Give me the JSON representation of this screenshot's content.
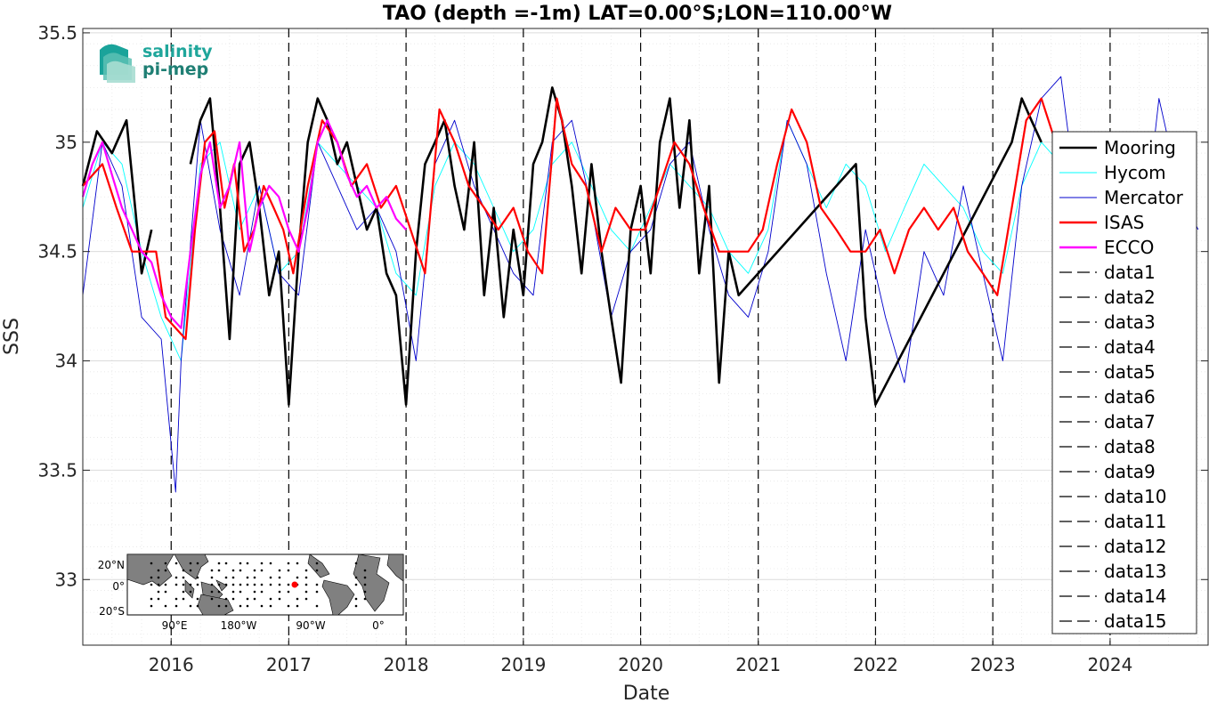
{
  "chart_data": {
    "type": "line",
    "title": "TAO (depth =-1m) LAT=0.00°S;LON=110.00°W",
    "xlabel": "Date",
    "ylabel": "SSS",
    "xlim": [
      "2015-04-01",
      "2024-11-01"
    ],
    "ylim": [
      32.7,
      35.52
    ],
    "x_ticks": [
      "2016",
      "2017",
      "2018",
      "2019",
      "2020",
      "2021",
      "2022",
      "2023",
      "2024"
    ],
    "y_ticks": [
      33,
      33.5,
      34,
      34.5,
      35,
      35.5
    ],
    "grid": true,
    "legend_position": "right",
    "year_markers": [
      "2016",
      "2017",
      "2018",
      "2019",
      "2020",
      "2021",
      "2022",
      "2023",
      "2024"
    ],
    "series": [
      {
        "name": "Mooring",
        "color": "#000000",
        "style": "solid-dots",
        "x": [
          "2015-04-01",
          "2015-05-15",
          "2015-07-01",
          "2015-08-15",
          "2015-10-01",
          "2015-11-01",
          "2015-12-01",
          "2016-01-01",
          "2016-02-01",
          "2016-03-01",
          "2016-04-01",
          "2016-05-01",
          "2016-06-01",
          "2016-07-01",
          "2016-08-01",
          "2016-09-01",
          "2016-10-01",
          "2016-11-01",
          "2016-12-01",
          "2017-01-01",
          "2017-02-01",
          "2017-03-01",
          "2017-04-01",
          "2017-05-01",
          "2017-06-01",
          "2017-07-01",
          "2017-08-01",
          "2017-09-01",
          "2017-10-01",
          "2017-11-01",
          "2017-12-01",
          "2018-01-01",
          "2018-02-01",
          "2018-03-01",
          "2018-04-01",
          "2018-05-01",
          "2018-06-01",
          "2018-07-01",
          "2018-08-01",
          "2018-09-01",
          "2018-10-01",
          "2018-11-01",
          "2018-12-01",
          "2019-01-01",
          "2019-02-01",
          "2019-03-01",
          "2019-04-01",
          "2019-05-01",
          "2019-06-01",
          "2019-07-01",
          "2019-08-01",
          "2019-09-01",
          "2019-10-01",
          "2019-11-01",
          "2019-12-01",
          "2020-01-01",
          "2020-02-01",
          "2020-03-01",
          "2020-04-01",
          "2020-05-01",
          "2020-06-01",
          "2020-07-01",
          "2020-08-01",
          "2020-09-01",
          "2020-10-01",
          "2020-11-01",
          "2021-11-01",
          "2021-12-01",
          "2022-01-01",
          "2023-03-01",
          "2023-04-01",
          "2023-05-01",
          "2023-06-01"
        ],
        "values": [
          34.8,
          35.05,
          34.95,
          35.1,
          34.4,
          34.6,
          null,
          null,
          null,
          34.9,
          35.1,
          35.2,
          34.7,
          34.1,
          34.9,
          35.0,
          34.7,
          34.3,
          34.5,
          33.8,
          34.5,
          35.0,
          35.2,
          35.1,
          34.9,
          35.0,
          34.8,
          34.6,
          34.7,
          34.4,
          34.3,
          33.8,
          34.5,
          34.9,
          35.0,
          35.1,
          34.8,
          34.6,
          35.0,
          34.3,
          34.7,
          34.2,
          34.6,
          34.3,
          34.9,
          35.0,
          35.25,
          35.1,
          34.8,
          34.4,
          34.9,
          34.5,
          34.2,
          33.9,
          34.6,
          34.8,
          34.4,
          35.0,
          35.2,
          34.7,
          35.1,
          34.4,
          34.8,
          33.9,
          34.5,
          34.3,
          34.9,
          34.2,
          33.8,
          35.0,
          35.2,
          35.1,
          35.0
        ]
      },
      {
        "name": "Hycom",
        "color": "#00ffff",
        "style": "solid-thin",
        "x": [
          "2015-04-01",
          "2015-06-01",
          "2015-08-01",
          "2015-10-01",
          "2015-12-01",
          "2016-02-01",
          "2016-04-01",
          "2016-06-01",
          "2016-08-01",
          "2016-10-01",
          "2016-12-01",
          "2017-02-01",
          "2017-04-01",
          "2017-06-01",
          "2017-08-01",
          "2017-10-01",
          "2017-12-01",
          "2018-02-01",
          "2018-04-01",
          "2018-06-01",
          "2018-08-01",
          "2018-10-01",
          "2018-12-01",
          "2019-02-01",
          "2019-04-01",
          "2019-06-01",
          "2019-08-01",
          "2019-10-01",
          "2019-12-01",
          "2020-02-01",
          "2020-04-01",
          "2020-06-01",
          "2020-08-01",
          "2020-10-01",
          "2020-12-01",
          "2021-02-01",
          "2021-04-01",
          "2021-06-01",
          "2021-08-01",
          "2021-10-01",
          "2021-12-01",
          "2022-02-01",
          "2022-04-01",
          "2022-06-01",
          "2022-08-01",
          "2022-10-01",
          "2022-12-01",
          "2023-02-01",
          "2023-04-01",
          "2023-06-01",
          "2023-08-01"
        ],
        "values": [
          34.7,
          35.0,
          34.9,
          34.5,
          34.2,
          34.0,
          34.9,
          35.0,
          34.6,
          34.8,
          34.4,
          34.5,
          35.0,
          34.9,
          34.8,
          34.7,
          34.4,
          34.3,
          34.8,
          35.0,
          34.9,
          34.7,
          34.5,
          34.6,
          34.9,
          35.0,
          34.8,
          34.6,
          34.5,
          34.7,
          34.9,
          34.8,
          34.7,
          34.5,
          34.4,
          34.6,
          35.1,
          34.9,
          34.7,
          34.9,
          34.8,
          34.5,
          34.7,
          34.9,
          34.8,
          34.7,
          34.5,
          34.4,
          34.8,
          35.0,
          34.9
        ]
      },
      {
        "name": "Mercator",
        "color": "#0000cc",
        "style": "solid-thin",
        "x": [
          "2015-04-01",
          "2015-06-01",
          "2015-08-01",
          "2015-10-01",
          "2015-12-01",
          "2016-01-15",
          "2016-02-01",
          "2016-04-01",
          "2016-06-01",
          "2016-08-01",
          "2016-10-01",
          "2016-12-01",
          "2017-02-01",
          "2017-04-01",
          "2017-06-01",
          "2017-08-01",
          "2017-10-01",
          "2017-12-01",
          "2018-02-01",
          "2018-04-01",
          "2018-06-01",
          "2018-08-01",
          "2018-10-01",
          "2018-12-01",
          "2019-02-01",
          "2019-04-01",
          "2019-06-01",
          "2019-08-01",
          "2019-10-01",
          "2019-12-01",
          "2020-02-01",
          "2020-04-01",
          "2020-06-01",
          "2020-08-01",
          "2020-10-01",
          "2020-12-01",
          "2021-02-01",
          "2021-04-01",
          "2021-06-01",
          "2021-08-01",
          "2021-10-01",
          "2021-12-01",
          "2022-02-01",
          "2022-04-01",
          "2022-06-01",
          "2022-08-01",
          "2022-10-01",
          "2022-12-01",
          "2023-02-01",
          "2023-04-01",
          "2023-06-01",
          "2023-08-01",
          "2023-10-01",
          "2023-12-01",
          "2024-02-01",
          "2024-04-01",
          "2024-06-01",
          "2024-08-01",
          "2024-10-01"
        ],
        "values": [
          34.3,
          35.0,
          34.8,
          34.2,
          34.1,
          33.4,
          34.0,
          35.1,
          34.6,
          34.3,
          34.8,
          34.4,
          34.3,
          35.0,
          34.8,
          34.6,
          34.7,
          34.5,
          34.0,
          34.9,
          35.1,
          34.8,
          34.6,
          34.4,
          34.3,
          35.0,
          35.1,
          34.7,
          34.2,
          34.5,
          34.6,
          34.9,
          35.0,
          34.6,
          34.3,
          34.2,
          34.5,
          35.1,
          34.9,
          34.4,
          34.0,
          34.6,
          34.2,
          33.9,
          34.5,
          34.3,
          34.8,
          34.4,
          34.0,
          34.8,
          35.2,
          35.3,
          34.6,
          34.9,
          34.7,
          34.4,
          35.2,
          34.8,
          34.6
        ]
      },
      {
        "name": "ISAS",
        "color": "#ff0000",
        "style": "solid-thick",
        "x": [
          "2015-04-01",
          "2015-06-01",
          "2015-07-15",
          "2015-09-01",
          "2015-10-15",
          "2015-11-15",
          "2015-12-15",
          "2016-02-15",
          "2016-03-15",
          "2016-04-15",
          "2016-05-15",
          "2016-06-15",
          "2016-07-15",
          "2016-08-15",
          "2016-09-15",
          "2016-10-15",
          "2016-11-15",
          "2016-12-15",
          "2017-01-15",
          "2017-03-01",
          "2017-04-15",
          "2017-06-01",
          "2017-07-15",
          "2017-09-01",
          "2017-10-15",
          "2017-12-01",
          "2018-01-15",
          "2018-03-01",
          "2018-04-15",
          "2018-06-01",
          "2018-07-15",
          "2018-09-01",
          "2018-10-15",
          "2018-12-01",
          "2019-01-15",
          "2019-03-01",
          "2019-04-15",
          "2019-06-01",
          "2019-07-15",
          "2019-09-01",
          "2019-10-15",
          "2019-12-01",
          "2020-01-15",
          "2020-03-01",
          "2020-04-15",
          "2020-06-01",
          "2020-07-15",
          "2020-09-01",
          "2020-10-15",
          "2020-12-01",
          "2021-01-15",
          "2021-03-01",
          "2021-04-15",
          "2021-06-01",
          "2021-07-15",
          "2021-09-01",
          "2021-10-15",
          "2021-12-01",
          "2022-01-15",
          "2022-03-01",
          "2022-04-15",
          "2022-06-01",
          "2022-07-15",
          "2022-09-01",
          "2022-10-15",
          "2022-12-01",
          "2023-01-15",
          "2023-03-01",
          "2023-04-15",
          "2023-06-01",
          "2023-07-15"
        ],
        "values": [
          34.8,
          34.9,
          34.7,
          34.5,
          34.5,
          34.5,
          34.2,
          34.1,
          34.6,
          35.0,
          35.05,
          34.7,
          34.9,
          34.5,
          34.6,
          34.8,
          34.7,
          34.6,
          34.4,
          34.8,
          35.1,
          35.0,
          34.8,
          34.9,
          34.7,
          34.8,
          34.6,
          34.4,
          35.15,
          35.0,
          34.8,
          34.7,
          34.6,
          34.7,
          34.5,
          34.4,
          35.2,
          34.9,
          34.8,
          34.5,
          34.7,
          34.6,
          34.6,
          34.8,
          35.0,
          34.9,
          34.7,
          34.5,
          34.5,
          34.5,
          34.6,
          34.9,
          35.15,
          35.0,
          34.7,
          34.6,
          34.5,
          34.5,
          34.6,
          34.4,
          34.6,
          34.7,
          34.6,
          34.7,
          34.5,
          34.4,
          34.3,
          34.7,
          35.1,
          35.2,
          35.0
        ]
      },
      {
        "name": "ECCO",
        "color": "#ff00ff",
        "style": "solid-thick",
        "x": [
          "2015-04-01",
          "2015-05-01",
          "2015-06-01",
          "2015-07-01",
          "2015-08-01",
          "2015-09-01",
          "2015-10-01",
          "2015-11-01",
          "2015-12-01",
          "2016-01-01",
          "2016-02-01",
          "2016-03-01",
          "2016-04-01",
          "2016-05-01",
          "2016-06-01",
          "2016-07-01",
          "2016-08-01",
          "2016-09-01",
          "2016-10-01",
          "2016-11-01",
          "2016-12-01",
          "2017-01-01",
          "2017-02-01",
          "2017-03-01",
          "2017-04-01",
          "2017-05-01",
          "2017-06-01",
          "2017-07-01",
          "2017-08-01",
          "2017-09-01",
          "2017-10-01",
          "2017-11-01",
          "2017-12-01",
          "2018-01-01"
        ],
        "values": [
          34.75,
          34.9,
          35.0,
          34.85,
          34.7,
          34.6,
          34.5,
          34.45,
          34.3,
          34.2,
          34.15,
          34.5,
          34.85,
          35.0,
          34.7,
          34.8,
          35.0,
          34.5,
          34.7,
          34.8,
          34.75,
          34.6,
          34.5,
          34.7,
          35.0,
          35.1,
          35.0,
          34.85,
          34.75,
          34.8,
          34.7,
          34.75,
          34.65,
          34.6
        ]
      }
    ],
    "legend": [
      "Mooring",
      "Hycom",
      "Mercator",
      "ISAS",
      "ECCO",
      "data1",
      "data2",
      "data3",
      "data4",
      "data5",
      "data6",
      "data7",
      "data8",
      "data9",
      "data10",
      "data11",
      "data12",
      "data13",
      "data14",
      "data15"
    ],
    "inset_map": {
      "lat_labels": [
        "20°N",
        "0°",
        "20°S"
      ],
      "lon_labels": [
        "90°E",
        "180°W",
        "90°W",
        "0°"
      ],
      "marker_color": "#ff0000"
    }
  },
  "logo": {
    "line1": "salinity",
    "line2": "pi-mep"
  }
}
